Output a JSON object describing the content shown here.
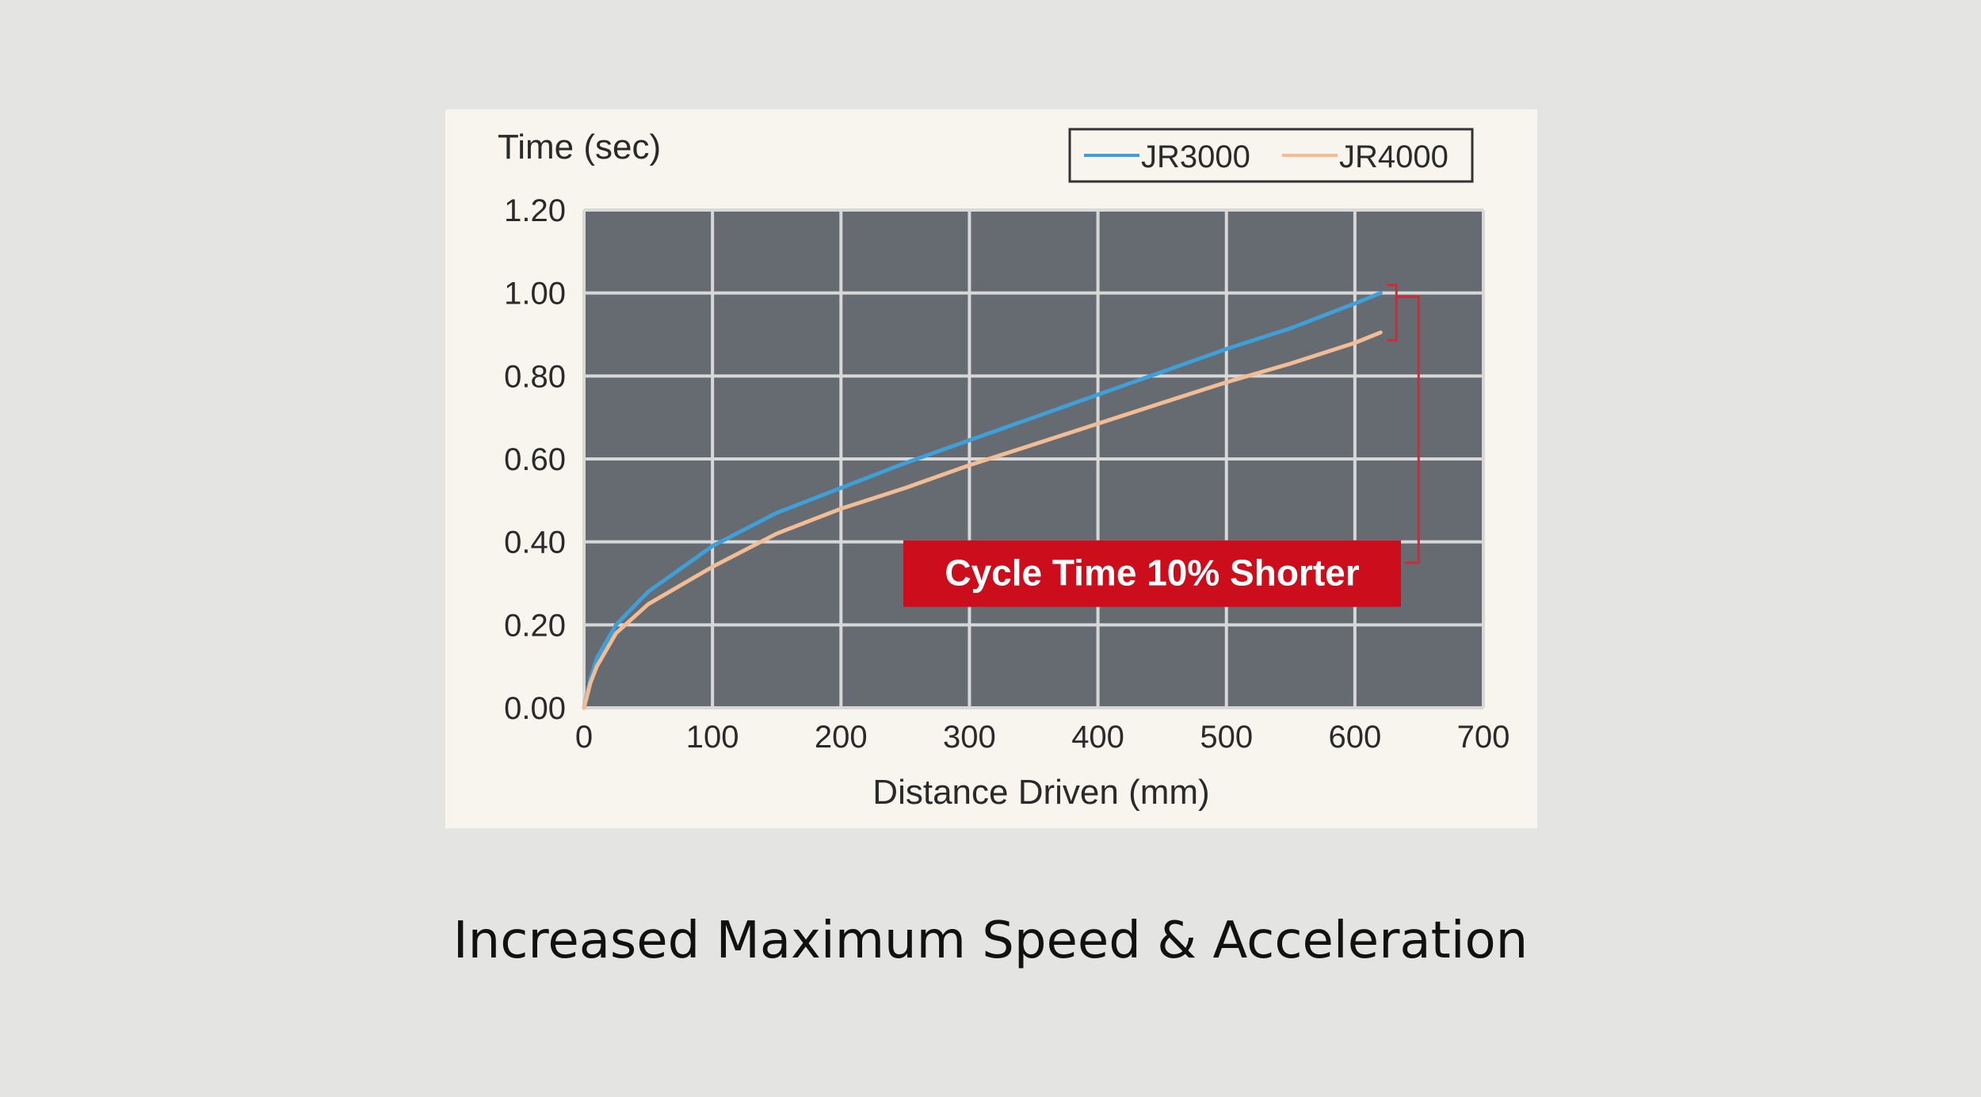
{
  "caption": "Increased Maximum Speed & Acceleration",
  "chart_data": {
    "type": "line",
    "ylabel": "Time (sec)",
    "xlabel": "Distance Driven (mm)",
    "xlim": [
      0,
      700
    ],
    "ylim": [
      0,
      1.2
    ],
    "x_ticks": [
      "0",
      "100",
      "200",
      "300",
      "400",
      "500",
      "600",
      "700"
    ],
    "y_ticks": [
      "0.00",
      "0.20",
      "0.40",
      "0.60",
      "0.80",
      "1.00",
      "1.20"
    ],
    "grid": true,
    "legend_position": "top-right",
    "series": [
      {
        "name": "JR3000",
        "color": "#3f9fd6",
        "x": [
          0,
          5,
          10,
          25,
          50,
          100,
          150,
          200,
          250,
          300,
          350,
          400,
          450,
          500,
          550,
          600,
          620
        ],
        "y": [
          0,
          0.07,
          0.12,
          0.2,
          0.28,
          0.39,
          0.47,
          0.53,
          0.59,
          0.645,
          0.7,
          0.755,
          0.81,
          0.865,
          0.915,
          0.975,
          1.0
        ]
      },
      {
        "name": "JR4000",
        "color": "#f2bc94",
        "x": [
          0,
          5,
          10,
          25,
          50,
          100,
          150,
          200,
          250,
          300,
          350,
          400,
          450,
          500,
          550,
          600,
          620
        ],
        "y": [
          0,
          0.06,
          0.1,
          0.18,
          0.25,
          0.34,
          0.42,
          0.48,
          0.53,
          0.585,
          0.635,
          0.685,
          0.735,
          0.785,
          0.83,
          0.88,
          0.905
        ]
      }
    ],
    "annotation": {
      "text": "Cycle Time 10% Shorter",
      "background": "#cc0d1b",
      "bracket_color": "#d12a35"
    },
    "plot_background": "#666a71",
    "grid_color": "#d8d8d8"
  }
}
